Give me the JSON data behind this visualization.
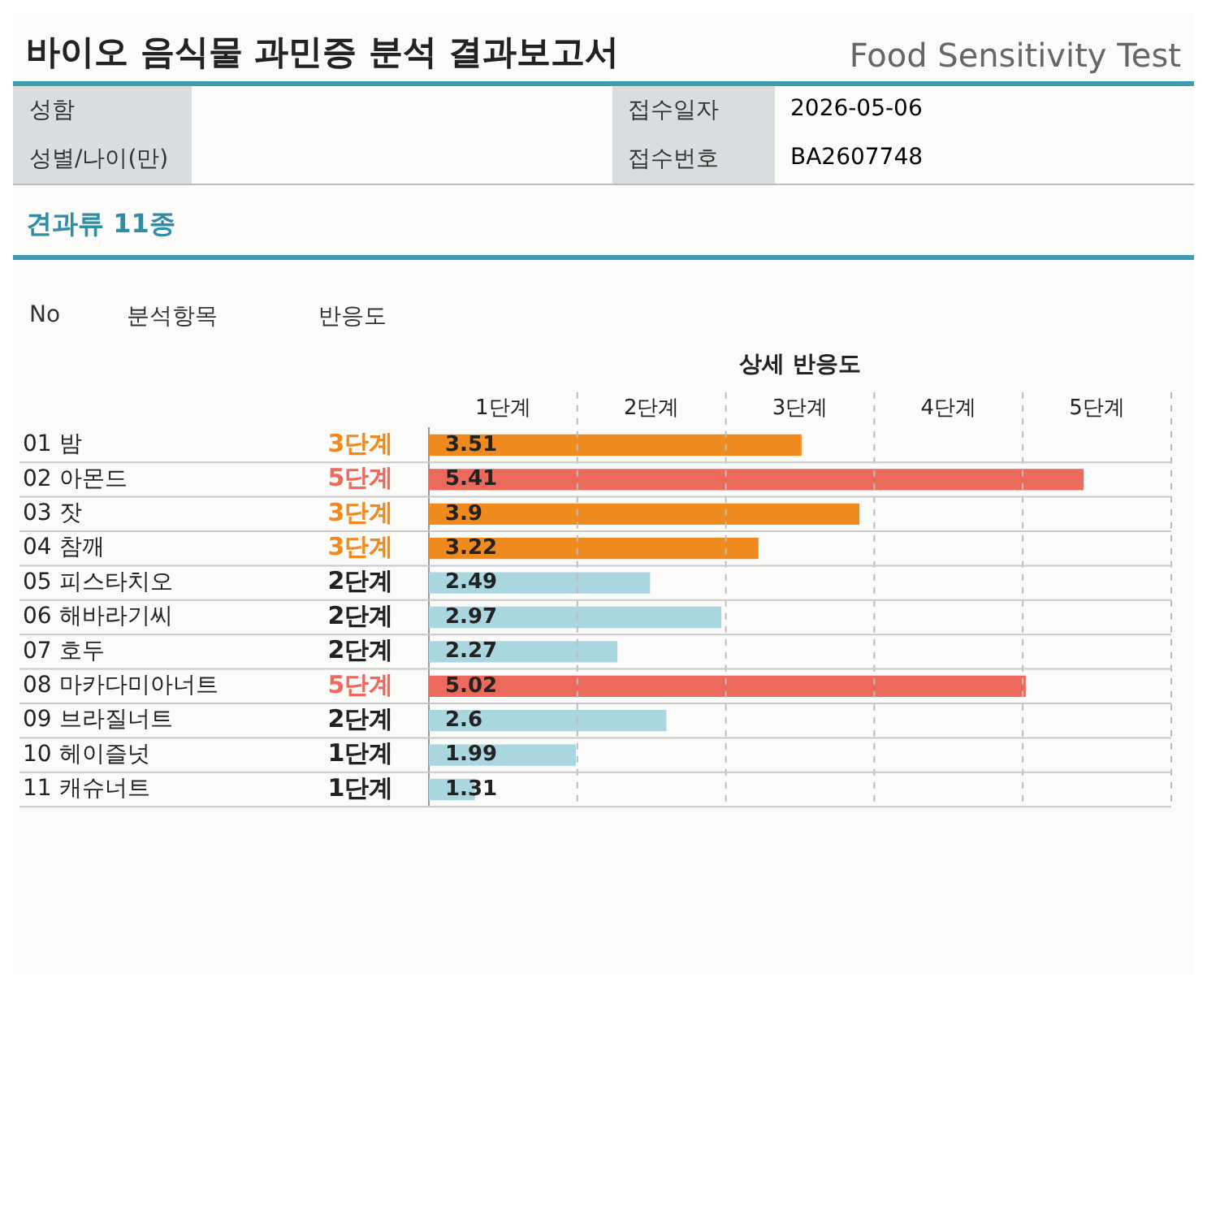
{
  "chart_data": {
    "type": "bar",
    "orientation": "horizontal",
    "title": "바이오 음식물 과민증 분석 결과보고서",
    "subtitle": "Food Sensitivity Test",
    "xlabel": "상세 반응도",
    "categories": [
      "01 밤",
      "02 아몬드",
      "03 잣",
      "04 참깨",
      "05 피스타치오",
      "06 해바라기씨",
      "07 호두",
      "08 마카다미아너트",
      "09 브라질너트",
      "10 헤이즐넛",
      "11 캐슈너트"
    ],
    "values": [
      3.51,
      5.41,
      3.9,
      3.22,
      2.49,
      2.97,
      2.27,
      5.02,
      2.6,
      1.99,
      1.31
    ],
    "colors": [
      "#ee8a1e",
      "#ec6a5c",
      "#ee8a1e",
      "#ee8a1e",
      "#a9d6df",
      "#a9d6df",
      "#a9d6df",
      "#ec6a5c",
      "#a9d6df",
      "#a9d6df",
      "#a9d6df"
    ],
    "xlim": [
      1,
      6
    ],
    "data_labels": true,
    "annotations": [
      "성함",
      "성별/나이(만)",
      "접수일자",
      "2026-05-06",
      "접수번호",
      "BA2607748",
      "견과류 11종",
      "No",
      "분석항목",
      "반응도",
      "1단계",
      "2단계",
      "3단계",
      "4단계",
      "5단계",
      "3단계",
      "5단계",
      "3단계",
      "3단계",
      "2단계",
      "2단계",
      "2단계",
      "5단계",
      "2단계",
      "1단계",
      "1단계"
    ]
  }
}
